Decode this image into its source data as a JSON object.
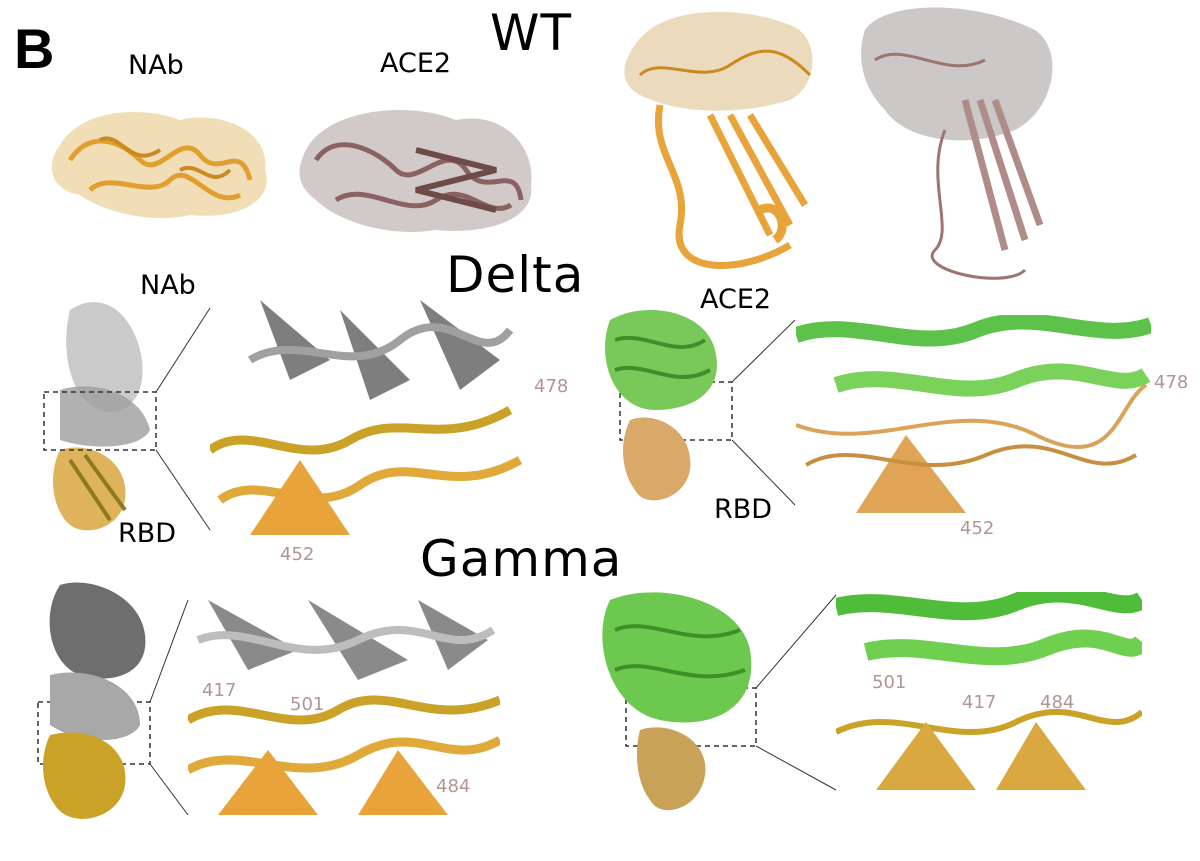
{
  "panel_label": "B",
  "wt": {
    "title": "WT",
    "nab_label": "NAb",
    "ace2_label": "ACE2"
  },
  "delta": {
    "title": "Delta",
    "nab_label": "NAb",
    "rbd_label_left": "RBD",
    "ace2_label": "ACE2",
    "rbd_label_right": "RBD",
    "nab_residues": [
      "478",
      "452"
    ],
    "ace2_residues": [
      "478",
      "452"
    ]
  },
  "gamma": {
    "title": "Gamma",
    "nab_residues": [
      "417",
      "501",
      "484"
    ],
    "ace2_residues": [
      "501",
      "417",
      "484"
    ]
  },
  "colors": {
    "rbd_orange": "#e8a33a",
    "rbd_gold": "#c9a227",
    "nab_gray": "#8c8c8c",
    "ace2_brown": "#a98080",
    "ace2_green": "#5dc24a",
    "residue_label": "#b29494"
  }
}
